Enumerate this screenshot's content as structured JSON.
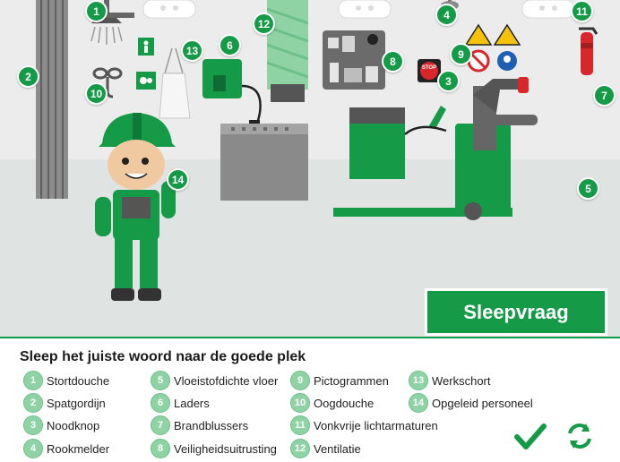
{
  "banner_label": "Sleepvraag",
  "instruction": "Sleep het juiste woord naar de goede plek",
  "markers": [
    "1",
    "2",
    "3",
    "4",
    "5",
    "6",
    "7",
    "8",
    "9",
    "10",
    "11",
    "12",
    "13",
    "14"
  ],
  "words": [
    {
      "num": "1",
      "label": "Stortdouche"
    },
    {
      "num": "2",
      "label": "Spatgordijn"
    },
    {
      "num": "3",
      "label": "Noodknop"
    },
    {
      "num": "4",
      "label": "Rookmelder"
    },
    {
      "num": "5",
      "label": "Vloeistofdichte vloer"
    },
    {
      "num": "6",
      "label": "Laders"
    },
    {
      "num": "7",
      "label": "Brandblussers"
    },
    {
      "num": "8",
      "label": "Veiligheidsuitrusting"
    },
    {
      "num": "9",
      "label": "Pictogrammen"
    },
    {
      "num": "10",
      "label": "Oogdouche"
    },
    {
      "num": "11",
      "label": "Vonkvrije lichtarmaturen"
    },
    {
      "num": "12",
      "label": "Ventilatie"
    },
    {
      "num": "13",
      "label": "Werkschort"
    },
    {
      "num": "14",
      "label": "Opgeleid personeel"
    }
  ],
  "stop_sign": "STOP",
  "colors": {
    "brand_green": "#159a47",
    "light_green": "#8fd3a4"
  },
  "icons": {
    "check": "checkmark-icon",
    "reset": "refresh-icon"
  }
}
